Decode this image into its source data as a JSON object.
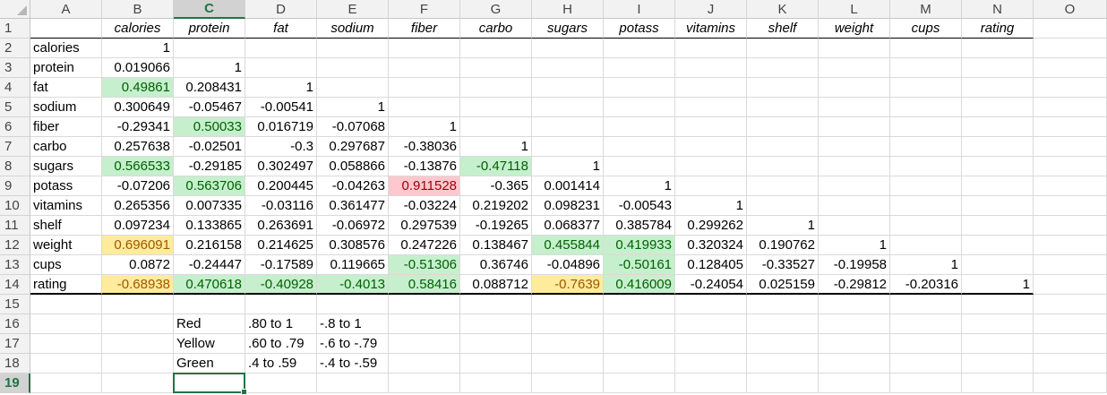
{
  "columns": [
    "A",
    "B",
    "C",
    "D",
    "E",
    "F",
    "G",
    "H",
    "I",
    "J",
    "K",
    "L",
    "M",
    "N",
    "O"
  ],
  "selected_column": "C",
  "selected_row": 19,
  "row_numbers": [
    1,
    2,
    3,
    4,
    5,
    6,
    7,
    8,
    9,
    10,
    11,
    12,
    13,
    14,
    15,
    16,
    17,
    18,
    19
  ],
  "header_row": [
    "calories",
    "protein",
    "fat",
    "sodium",
    "fiber",
    "carbo",
    "sugars",
    "potass",
    "vitamins",
    "shelf",
    "weight",
    "cups",
    "rating"
  ],
  "row_labels": [
    "calories",
    "protein",
    "fat",
    "sodium",
    "fiber",
    "carbo",
    "sugars",
    "potass",
    "vitamins",
    "shelf",
    "weight",
    "cups",
    "rating"
  ],
  "matrix": [
    [
      "1"
    ],
    [
      "0.019066",
      "1"
    ],
    [
      "0.49861",
      "0.208431",
      "1"
    ],
    [
      "0.300649",
      "-0.05467",
      "-0.00541",
      "1"
    ],
    [
      "-0.29341",
      "0.50033",
      "0.016719",
      "-0.07068",
      "1"
    ],
    [
      "0.257638",
      "-0.02501",
      "-0.3",
      "0.297687",
      "-0.38036",
      "1"
    ],
    [
      "0.566533",
      "-0.29185",
      "0.302497",
      "0.058866",
      "-0.13876",
      "-0.47118",
      "1"
    ],
    [
      "-0.07206",
      "0.563706",
      "0.200445",
      "-0.04263",
      "0.911528",
      "-0.365",
      "0.001414",
      "1"
    ],
    [
      "0.265356",
      "0.007335",
      "-0.03116",
      "0.361477",
      "-0.03224",
      "0.219202",
      "0.098231",
      "-0.00543",
      "1"
    ],
    [
      "0.097234",
      "0.133865",
      "0.263691",
      "-0.06972",
      "0.297539",
      "-0.19265",
      "0.068377",
      "0.385784",
      "0.299262",
      "1"
    ],
    [
      "0.696091",
      "0.216158",
      "0.214625",
      "0.308576",
      "0.247226",
      "0.138467",
      "0.455844",
      "0.419933",
      "0.320324",
      "0.190762",
      "1"
    ],
    [
      "0.0872",
      "-0.24447",
      "-0.17589",
      "0.119665",
      "-0.51306",
      "0.36746",
      "-0.04896",
      "-0.50161",
      "0.128405",
      "-0.33527",
      "-0.19958",
      "1"
    ],
    [
      "-0.68938",
      "0.470618",
      "-0.40928",
      "-0.4013",
      "0.58416",
      "0.088712",
      "-0.7639",
      "0.416009",
      "-0.24054",
      "0.025159",
      "-0.29812",
      "-0.20316",
      "1"
    ]
  ],
  "highlights": [
    {
      "row": 2,
      "col": 0,
      "color": "green"
    },
    {
      "row": 4,
      "col": 1,
      "color": "green"
    },
    {
      "row": 6,
      "col": 0,
      "color": "green"
    },
    {
      "row": 6,
      "col": 5,
      "color": "green"
    },
    {
      "row": 7,
      "col": 1,
      "color": "green"
    },
    {
      "row": 7,
      "col": 4,
      "color": "red"
    },
    {
      "row": 10,
      "col": 0,
      "color": "yellow"
    },
    {
      "row": 10,
      "col": 6,
      "color": "green"
    },
    {
      "row": 10,
      "col": 7,
      "color": "green"
    },
    {
      "row": 11,
      "col": 4,
      "color": "green"
    },
    {
      "row": 11,
      "col": 7,
      "color": "green"
    },
    {
      "row": 12,
      "col": 0,
      "color": "yellow"
    },
    {
      "row": 12,
      "col": 1,
      "color": "green"
    },
    {
      "row": 12,
      "col": 2,
      "color": "green"
    },
    {
      "row": 12,
      "col": 3,
      "color": "green"
    },
    {
      "row": 12,
      "col": 4,
      "color": "green"
    },
    {
      "row": 12,
      "col": 6,
      "color": "yellow"
    },
    {
      "row": 12,
      "col": 7,
      "color": "green"
    }
  ],
  "legend": [
    {
      "label": "Red",
      "positive": ".80 to 1",
      "negative": "-.8 to 1"
    },
    {
      "label": "Yellow",
      "positive": ".60 to .79",
      "negative": "-.6 to -.79"
    },
    {
      "label": "Green",
      "positive": ".4 to .59",
      "negative": "-.4 to -.59"
    }
  ],
  "colors": {
    "green_fill": "#c6efce",
    "green_text": "#006100",
    "yellow_fill": "#ffeb9c",
    "yellow_text": "#9c5700",
    "red_fill": "#ffc7ce",
    "red_text": "#9c0006",
    "selection": "#217346"
  }
}
